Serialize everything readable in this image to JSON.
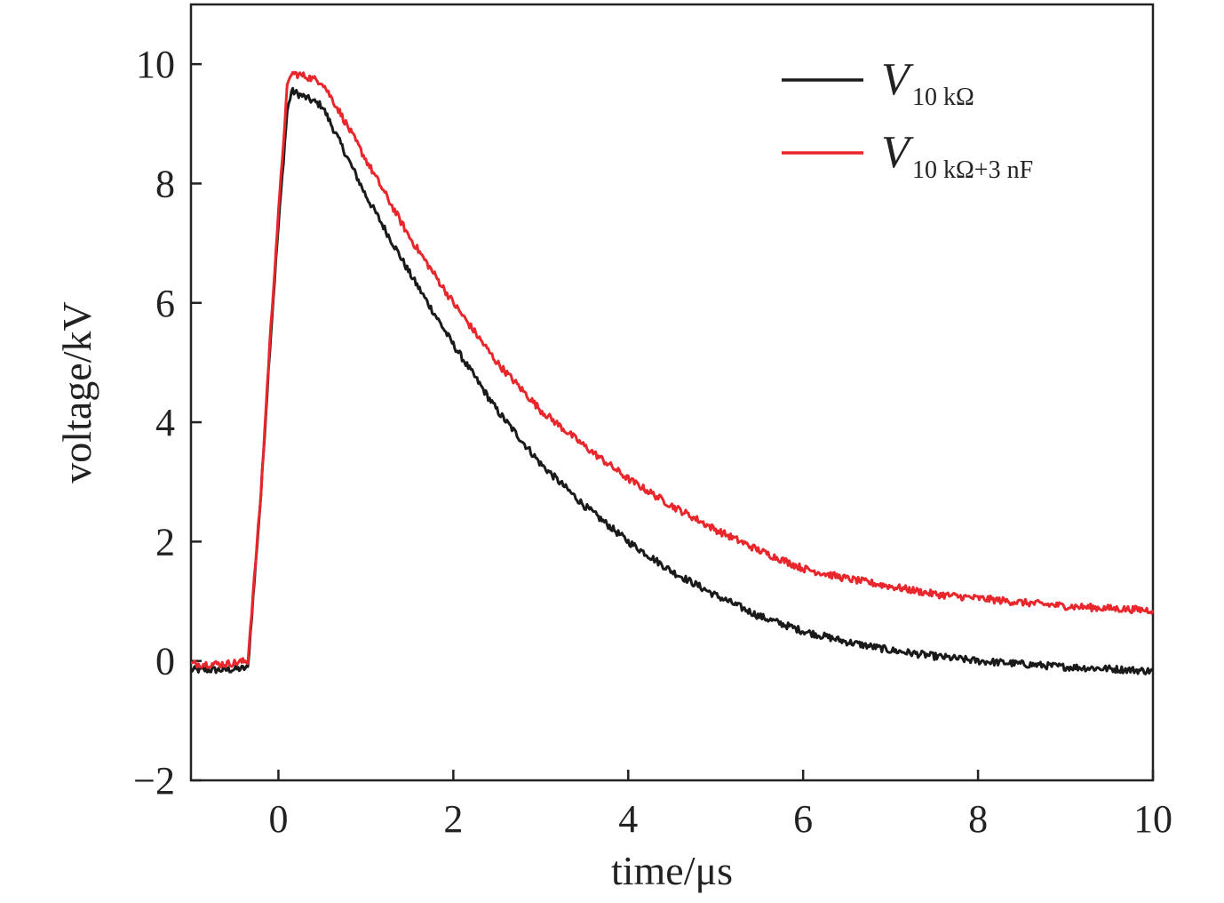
{
  "chart_data": {
    "type": "line",
    "xlabel": "time/μs",
    "ylabel": "voltage/kV",
    "xlim": [
      -1,
      10
    ],
    "ylim": [
      -2,
      11
    ],
    "xticks": [
      0,
      2,
      4,
      6,
      8,
      10
    ],
    "yticks": [
      -2,
      0,
      2,
      4,
      6,
      8,
      10
    ],
    "xtick_labels": [
      "0",
      "2",
      "4",
      "6",
      "8",
      "10"
    ],
    "ytick_labels": [
      "−2",
      "0",
      "2",
      "4",
      "6",
      "8",
      "10"
    ],
    "grid": false,
    "legend_position": "top-right",
    "series": [
      {
        "name": "V",
        "subscript": "10 kΩ",
        "color": "#1a1a1a",
        "x": [
          -1,
          -0.6,
          -0.35,
          -0.2,
          -0.1,
          0.0,
          0.1,
          0.15,
          0.3,
          0.5,
          0.7,
          1.0,
          1.5,
          2.0,
          2.5,
          3.0,
          3.5,
          4.0,
          4.5,
          5.0,
          5.5,
          6.0,
          6.5,
          7.0,
          7.5,
          8.0,
          8.5,
          9.0,
          9.5,
          10.0
        ],
        "y": [
          -0.15,
          -0.15,
          -0.12,
          2.8,
          5.2,
          7.3,
          9.2,
          9.55,
          9.45,
          9.3,
          8.7,
          7.8,
          6.5,
          5.3,
          4.2,
          3.3,
          2.6,
          2.0,
          1.5,
          1.1,
          0.75,
          0.5,
          0.32,
          0.18,
          0.08,
          0.0,
          -0.05,
          -0.1,
          -0.13,
          -0.17
        ]
      },
      {
        "name": "V",
        "subscript": "10 kΩ+3 nF",
        "color": "#e8262b",
        "x": [
          -1,
          -0.6,
          -0.35,
          -0.2,
          -0.1,
          0.0,
          0.1,
          0.15,
          0.3,
          0.5,
          0.7,
          1.0,
          1.5,
          2.0,
          2.5,
          3.0,
          3.5,
          4.0,
          4.5,
          5.0,
          5.5,
          6.0,
          6.5,
          7.0,
          7.5,
          8.0,
          8.5,
          9.0,
          9.5,
          10.0
        ],
        "y": [
          -0.05,
          -0.05,
          0.0,
          2.8,
          5.3,
          7.5,
          9.6,
          9.85,
          9.8,
          9.7,
          9.2,
          8.4,
          7.1,
          6.0,
          5.0,
          4.2,
          3.6,
          3.05,
          2.6,
          2.2,
          1.85,
          1.55,
          1.38,
          1.25,
          1.12,
          1.05,
          0.98,
          0.92,
          0.88,
          0.85
        ]
      }
    ]
  }
}
